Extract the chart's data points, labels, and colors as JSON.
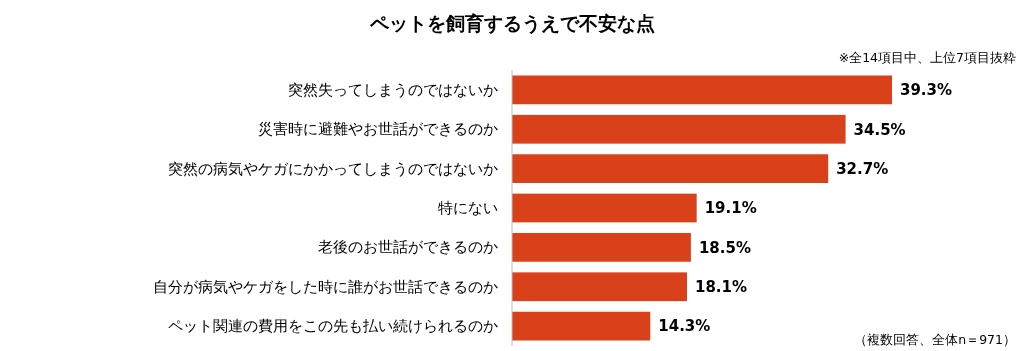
{
  "chart_data": {
    "type": "bar",
    "orientation": "horizontal",
    "title": "ペットを飼育するうえで不安な点",
    "annotations": [
      "※全14項目中、上位7項目抜粋",
      "（複数回答、全体n＝971）"
    ],
    "categories": [
      "突然失ってしまうのではないか",
      "災害時に避難やお世話ができるのか",
      "突然の病気やケガにかかってしまうのではないか",
      "特にない",
      "老後のお世話ができるのか",
      "自分が病気やケガをした時に誰がお世話できるのか",
      "ペット関連の費用をこの先も払い続けられるのか"
    ],
    "values": [
      39.3,
      34.5,
      32.7,
      19.1,
      18.5,
      18.1,
      14.3
    ],
    "value_labels": [
      "39.3%",
      "34.5%",
      "32.7%",
      "19.1%",
      "18.5%",
      "18.1%",
      "14.3%"
    ],
    "color": "#d9411a"
  }
}
